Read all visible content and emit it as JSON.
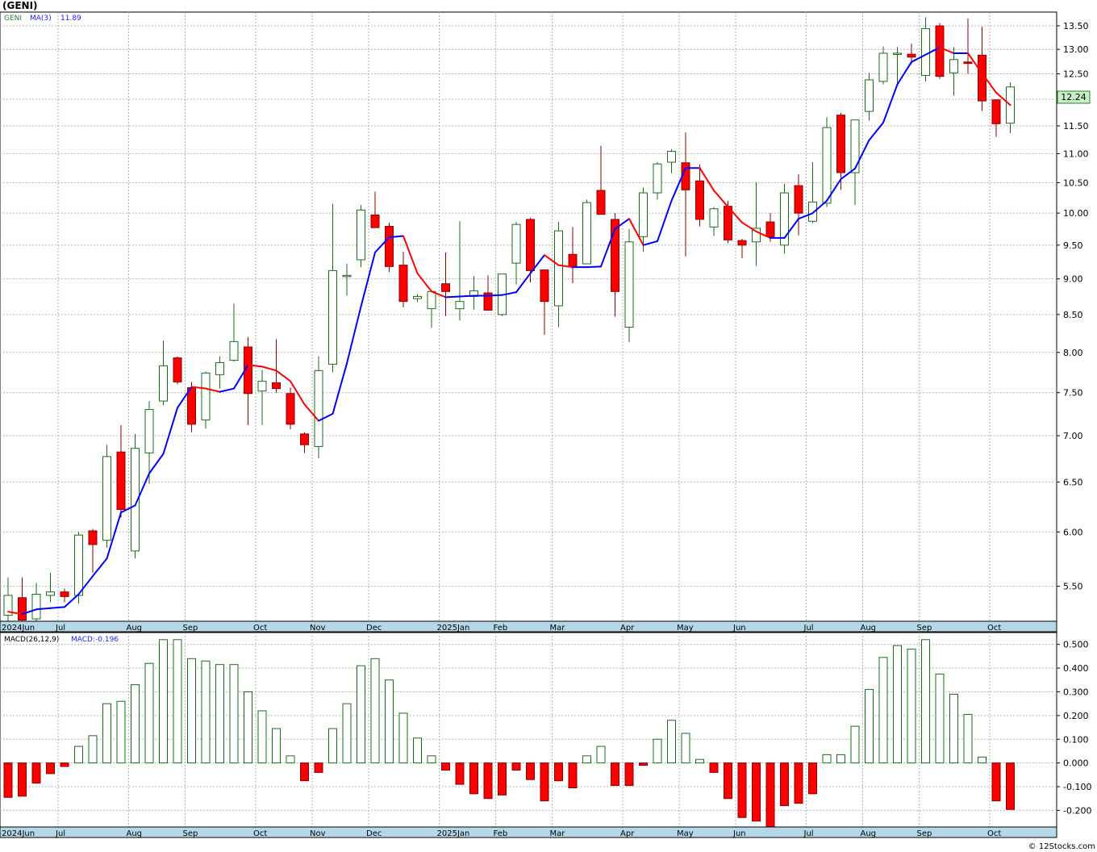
{
  "header": {
    "ticker_title": "(GENI)",
    "legend_symbol": "GENI",
    "legend_ma_label": "MA(3)",
    "legend_ma_value": "11.89",
    "last_price_label": "12.24"
  },
  "macd_panel": {
    "legend_label": "MACD(26,12,9)",
    "legend_value": "MACD:-0.196"
  },
  "footer": {
    "credit": "© 12Stocks.com"
  },
  "colors": {
    "up_candle_stroke": "#1a6e1a",
    "down_candle_fill": "#ff0000",
    "ma_up": "#0000ff",
    "ma_down": "#ff0000",
    "grid": "#b4b4b4",
    "axis_band": "#b4d8e8",
    "price_badge_bg": "#c8f0c8",
    "macd_pos_stroke": "#1a6e1a",
    "macd_neg_fill": "#ff0000"
  },
  "chart_data": [
    {
      "type": "candlestick",
      "series_name": "GENI",
      "y_scale": "log",
      "ylim": [
        5.2,
        13.8
      ],
      "y_ticks": [
        "5.50",
        "6.00",
        "6.50",
        "7.00",
        "7.50",
        "8.00",
        "8.50",
        "9.00",
        "9.50",
        "10.00",
        "10.50",
        "11.00",
        "11.50",
        "12.00",
        "12.50",
        "13.00",
        "13.50"
      ],
      "x_ticks": [
        "2024Jun",
        "Jul",
        "Aug",
        "Sep",
        "Oct",
        "Nov",
        "Dec",
        "2025Jan",
        "Feb",
        "Mar",
        "Apr",
        "May",
        "Jun",
        "Jul",
        "Aug",
        "Sep",
        "Oct"
      ],
      "x_tick_week_index": [
        0,
        4,
        9,
        13,
        18,
        22,
        26,
        31,
        35,
        39,
        44,
        48,
        52,
        57,
        61,
        65,
        70
      ],
      "grid": true,
      "candles": [
        {
          "o": 5.25,
          "h": 5.58,
          "l": 5.17,
          "c": 5.42
        },
        {
          "o": 5.4,
          "h": 5.58,
          "l": 5.19,
          "c": 5.21
        },
        {
          "o": 5.22,
          "h": 5.53,
          "l": 5.13,
          "c": 5.43
        },
        {
          "o": 5.42,
          "h": 5.62,
          "l": 5.36,
          "c": 5.45
        },
        {
          "o": 5.45,
          "h": 5.48,
          "l": 5.36,
          "c": 5.41
        },
        {
          "o": 5.42,
          "h": 6.0,
          "l": 5.35,
          "c": 5.97
        },
        {
          "o": 6.01,
          "h": 6.03,
          "l": 5.62,
          "c": 5.88
        },
        {
          "o": 5.92,
          "h": 6.9,
          "l": 5.85,
          "c": 6.77
        },
        {
          "o": 6.82,
          "h": 7.12,
          "l": 6.14,
          "c": 6.22
        },
        {
          "o": 5.82,
          "h": 7.02,
          "l": 5.75,
          "c": 6.86
        },
        {
          "o": 6.81,
          "h": 7.4,
          "l": 6.48,
          "c": 7.3
        },
        {
          "o": 7.4,
          "h": 8.15,
          "l": 7.35,
          "c": 7.83
        },
        {
          "o": 7.93,
          "h": 7.95,
          "l": 7.6,
          "c": 7.63
        },
        {
          "o": 7.56,
          "h": 7.63,
          "l": 7.04,
          "c": 7.13
        },
        {
          "o": 7.18,
          "h": 7.76,
          "l": 7.08,
          "c": 7.74
        },
        {
          "o": 7.72,
          "h": 7.95,
          "l": 7.55,
          "c": 7.87
        },
        {
          "o": 7.9,
          "h": 8.65,
          "l": 7.88,
          "c": 8.14
        },
        {
          "o": 8.07,
          "h": 8.2,
          "l": 7.12,
          "c": 7.49
        },
        {
          "o": 7.52,
          "h": 7.78,
          "l": 7.12,
          "c": 7.64
        },
        {
          "o": 7.62,
          "h": 8.17,
          "l": 7.5,
          "c": 7.55
        },
        {
          "o": 7.49,
          "h": 7.56,
          "l": 7.07,
          "c": 7.13
        },
        {
          "o": 7.02,
          "h": 7.04,
          "l": 6.81,
          "c": 6.9
        },
        {
          "o": 6.88,
          "h": 7.95,
          "l": 6.75,
          "c": 7.77
        },
        {
          "o": 7.85,
          "h": 10.15,
          "l": 7.75,
          "c": 9.12
        },
        {
          "o": 9.05,
          "h": 9.22,
          "l": 8.76,
          "c": 9.05
        },
        {
          "o": 9.28,
          "h": 10.13,
          "l": 9.17,
          "c": 10.05
        },
        {
          "o": 9.97,
          "h": 10.35,
          "l": 9.77,
          "c": 9.77
        },
        {
          "o": 9.79,
          "h": 9.85,
          "l": 9.1,
          "c": 9.18
        },
        {
          "o": 9.2,
          "h": 9.4,
          "l": 8.6,
          "c": 8.68
        },
        {
          "o": 8.72,
          "h": 8.78,
          "l": 8.67,
          "c": 8.75
        },
        {
          "o": 8.58,
          "h": 8.84,
          "l": 8.32,
          "c": 8.82
        },
        {
          "o": 8.93,
          "h": 9.39,
          "l": 8.48,
          "c": 8.82
        },
        {
          "o": 8.58,
          "h": 9.87,
          "l": 8.42,
          "c": 8.68
        },
        {
          "o": 8.75,
          "h": 9.04,
          "l": 8.57,
          "c": 8.83
        },
        {
          "o": 8.8,
          "h": 9.05,
          "l": 8.56,
          "c": 8.56
        },
        {
          "o": 8.5,
          "h": 9.07,
          "l": 8.48,
          "c": 9.07
        },
        {
          "o": 9.23,
          "h": 9.86,
          "l": 8.92,
          "c": 9.82
        },
        {
          "o": 9.9,
          "h": 9.93,
          "l": 8.95,
          "c": 9.12
        },
        {
          "o": 9.13,
          "h": 9.13,
          "l": 8.23,
          "c": 8.68
        },
        {
          "o": 8.62,
          "h": 9.86,
          "l": 8.33,
          "c": 9.72
        },
        {
          "o": 9.36,
          "h": 9.78,
          "l": 8.94,
          "c": 9.18
        },
        {
          "o": 9.22,
          "h": 10.22,
          "l": 9.22,
          "c": 10.17
        },
        {
          "o": 10.37,
          "h": 11.14,
          "l": 10.0,
          "c": 9.98
        },
        {
          "o": 9.9,
          "h": 10.0,
          "l": 8.47,
          "c": 8.82
        },
        {
          "o": 8.33,
          "h": 9.75,
          "l": 8.13,
          "c": 9.55
        },
        {
          "o": 9.63,
          "h": 10.42,
          "l": 9.4,
          "c": 10.33
        },
        {
          "o": 10.33,
          "h": 10.85,
          "l": 10.22,
          "c": 10.82
        },
        {
          "o": 10.85,
          "h": 11.08,
          "l": 10.66,
          "c": 11.04
        },
        {
          "o": 10.84,
          "h": 11.38,
          "l": 9.33,
          "c": 10.38
        },
        {
          "o": 10.53,
          "h": 10.81,
          "l": 9.79,
          "c": 9.9
        },
        {
          "o": 9.78,
          "h": 10.1,
          "l": 9.64,
          "c": 10.07
        },
        {
          "o": 10.11,
          "h": 10.2,
          "l": 9.53,
          "c": 9.58
        },
        {
          "o": 9.57,
          "h": 9.6,
          "l": 9.3,
          "c": 9.5
        },
        {
          "o": 9.55,
          "h": 10.51,
          "l": 9.19,
          "c": 9.76
        },
        {
          "o": 9.86,
          "h": 10.0,
          "l": 9.55,
          "c": 9.63
        },
        {
          "o": 9.5,
          "h": 10.48,
          "l": 9.37,
          "c": 10.33
        },
        {
          "o": 10.45,
          "h": 10.64,
          "l": 9.65,
          "c": 10.0
        },
        {
          "o": 9.87,
          "h": 10.85,
          "l": 9.84,
          "c": 10.18
        },
        {
          "o": 10.16,
          "h": 11.66,
          "l": 10.1,
          "c": 11.47
        },
        {
          "o": 11.7,
          "h": 11.74,
          "l": 10.38,
          "c": 10.67
        },
        {
          "o": 10.67,
          "h": 11.6,
          "l": 10.13,
          "c": 11.61
        },
        {
          "o": 11.77,
          "h": 12.52,
          "l": 11.6,
          "c": 12.38
        },
        {
          "o": 12.35,
          "h": 13.06,
          "l": 12.29,
          "c": 12.92
        },
        {
          "o": 12.92,
          "h": 13.05,
          "l": 12.3,
          "c": 12.92
        },
        {
          "o": 12.9,
          "h": 13.12,
          "l": 12.7,
          "c": 12.84
        },
        {
          "o": 12.47,
          "h": 13.69,
          "l": 12.35,
          "c": 13.44
        },
        {
          "o": 13.5,
          "h": 13.56,
          "l": 12.4,
          "c": 12.45
        },
        {
          "o": 12.52,
          "h": 13.05,
          "l": 12.07,
          "c": 12.79
        },
        {
          "o": 12.74,
          "h": 13.66,
          "l": 12.5,
          "c": 12.71
        },
        {
          "o": 12.88,
          "h": 13.48,
          "l": 11.78,
          "c": 11.97
        },
        {
          "o": 11.99,
          "h": 12.0,
          "l": 11.3,
          "c": 11.54
        },
        {
          "o": 11.55,
          "h": 12.33,
          "l": 11.37,
          "c": 12.24
        }
      ],
      "ma": {
        "name": "MA(3)",
        "values": [
          5.28,
          5.26,
          5.3,
          5.31,
          5.32,
          5.43,
          5.59,
          5.75,
          6.19,
          6.26,
          6.59,
          6.8,
          7.32,
          7.57,
          7.55,
          7.51,
          7.55,
          7.84,
          7.82,
          7.77,
          7.64,
          7.36,
          7.17,
          7.25,
          7.86,
          8.61,
          9.39,
          9.62,
          9.64,
          9.08,
          8.82,
          8.74,
          8.75,
          8.76,
          8.76,
          8.77,
          8.81,
          9.08,
          9.35,
          9.2,
          9.17,
          9.17,
          9.18,
          9.75,
          9.91,
          9.5,
          9.56,
          10.2,
          10.75,
          10.75,
          10.37,
          10.1,
          9.85,
          9.71,
          9.61,
          9.61,
          9.91,
          10.0,
          10.2,
          10.56,
          10.74,
          11.24,
          11.56,
          12.29,
          12.74,
          12.89,
          13.04,
          12.92,
          12.92,
          12.51,
          12.13,
          11.89
        ]
      }
    },
    {
      "type": "bar",
      "series_name": "MACD(26,12,9)",
      "ylim": [
        -0.27,
        0.55
      ],
      "y_ticks": [
        "-0.200",
        "-0.100",
        "0.000",
        "0.100",
        "0.200",
        "0.300",
        "0.400",
        "0.500"
      ],
      "x_ticks": [
        "2024Jun",
        "Jul",
        "Aug",
        "Sep",
        "Oct",
        "Nov",
        "Dec",
        "2025Jan",
        "Feb",
        "Mar",
        "Apr",
        "May",
        "Jun",
        "Jul",
        "Aug",
        "Sep",
        "Oct"
      ],
      "grid": true,
      "values": [
        -0.145,
        -0.14,
        -0.085,
        -0.045,
        -0.015,
        0.07,
        0.115,
        0.25,
        0.26,
        0.33,
        0.42,
        0.52,
        0.52,
        0.44,
        0.43,
        0.415,
        0.415,
        0.3,
        0.22,
        0.145,
        0.03,
        -0.075,
        -0.04,
        0.145,
        0.25,
        0.41,
        0.44,
        0.35,
        0.21,
        0.105,
        0.03,
        -0.03,
        -0.09,
        -0.13,
        -0.15,
        -0.135,
        -0.03,
        -0.07,
        -0.16,
        -0.075,
        -0.105,
        0.03,
        0.07,
        -0.095,
        -0.095,
        -0.01,
        0.1,
        0.18,
        0.125,
        0.015,
        -0.04,
        -0.15,
        -0.23,
        -0.245,
        -0.27,
        -0.18,
        -0.17,
        -0.13,
        0.035,
        0.035,
        0.155,
        0.31,
        0.445,
        0.495,
        0.48,
        0.52,
        0.375,
        0.29,
        0.205,
        0.025,
        -0.16,
        -0.196
      ]
    }
  ]
}
